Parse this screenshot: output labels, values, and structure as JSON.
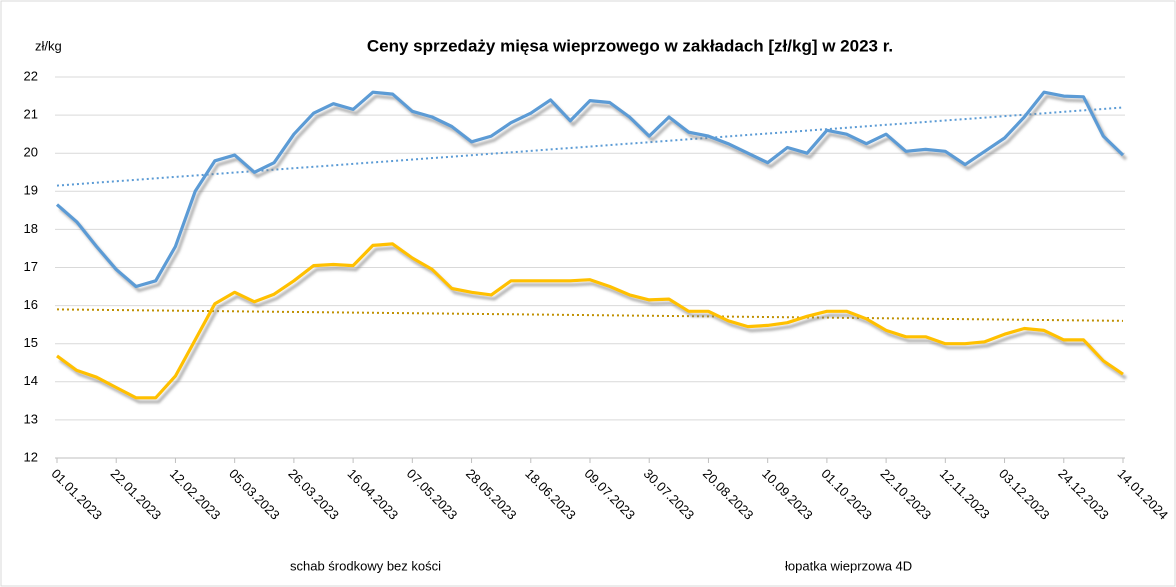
{
  "chart_data": {
    "type": "line",
    "title": "Ceny sprzedaży mięsa wieprzowego w zakładach [zł/kg] w 2023 r.",
    "y_label": "zł/kg",
    "categories": [
      "01.01.2023",
      null,
      null,
      "22.01.2023",
      null,
      null,
      "12.02.2023",
      null,
      null,
      "05.03.2023",
      null,
      null,
      "26.03.2023",
      null,
      null,
      "16.04.2023",
      null,
      null,
      "07.05.2023",
      null,
      null,
      "28.05.2023",
      null,
      null,
      "18.06.2023",
      null,
      null,
      "09.07.2023",
      null,
      null,
      "30.07.2023",
      null,
      null,
      "20.08.2023",
      null,
      null,
      "10.09.2023",
      null,
      null,
      "01.10.2023",
      null,
      null,
      "22.10.2023",
      null,
      null,
      "12.11.2023",
      null,
      null,
      "03.12.2023",
      null,
      null,
      "24.12.2023",
      null,
      null,
      "14.01.2024"
    ],
    "series": [
      {
        "name": "schab środkowy bez kości",
        "color": "#5b9bd5",
        "trend_color": "#5b9bd5",
        "trendline": [
          19.15,
          21.2
        ],
        "values": [
          18.65,
          18.2,
          17.55,
          16.95,
          16.5,
          16.65,
          17.55,
          19.0,
          19.8,
          19.95,
          19.5,
          19.75,
          20.5,
          21.05,
          21.3,
          21.15,
          21.6,
          21.55,
          21.1,
          20.95,
          20.7,
          20.3,
          20.45,
          20.8,
          21.05,
          21.4,
          20.85,
          21.38,
          21.33,
          20.95,
          20.45,
          20.95,
          20.55,
          20.45,
          20.25,
          20.0,
          19.75,
          20.15,
          20.0,
          20.6,
          20.5,
          20.25,
          20.5,
          20.05,
          20.1,
          20.05,
          19.7,
          20.05,
          20.4,
          20.95,
          21.6,
          21.5,
          21.48,
          20.45,
          19.95
        ]
      },
      {
        "name": "łopatka wieprzowa 4D",
        "color": "#ffc000",
        "trend_color": "#bf9000",
        "trendline": [
          15.9,
          15.6
        ],
        "values": [
          14.68,
          14.3,
          14.12,
          13.85,
          13.58,
          13.58,
          14.15,
          15.1,
          16.05,
          16.35,
          16.1,
          16.3,
          16.65,
          17.05,
          17.08,
          17.05,
          17.58,
          17.62,
          17.25,
          16.95,
          16.45,
          16.35,
          16.28,
          16.65,
          16.65,
          16.65,
          16.65,
          16.68,
          16.5,
          16.28,
          16.15,
          16.17,
          15.85,
          15.85,
          15.6,
          15.45,
          15.48,
          15.55,
          15.72,
          15.85,
          15.85,
          15.65,
          15.35,
          15.18,
          15.18,
          15.0,
          15.0,
          15.05,
          15.25,
          15.4,
          15.35,
          15.1,
          15.1,
          14.55,
          14.2
        ]
      }
    ],
    "ylim": [
      12,
      22
    ],
    "yticks": [
      12,
      13,
      14,
      15,
      16,
      17,
      18,
      19,
      20,
      21,
      22
    ],
    "grid": true,
    "legend": "bottom"
  }
}
